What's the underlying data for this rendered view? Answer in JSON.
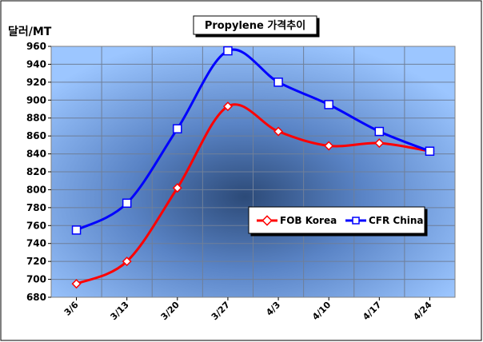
{
  "chart_data": {
    "type": "line",
    "title": "Propylene 가격추이",
    "ylabel": "달러/MT",
    "xlabel": "",
    "categories": [
      "3/6",
      "3/13",
      "3/20",
      "3/27",
      "4/3",
      "4/10",
      "4/17",
      "4/24"
    ],
    "ylim": [
      680,
      960
    ],
    "yticks": [
      680,
      700,
      720,
      740,
      760,
      780,
      800,
      820,
      840,
      860,
      880,
      900,
      920,
      940,
      960
    ],
    "grid": true,
    "legend_position": "center-right",
    "series": [
      {
        "name": "FOB Korea",
        "color": "#ff0000",
        "marker": "diamond",
        "values": [
          695,
          720,
          802,
          893,
          865,
          849,
          852,
          843
        ]
      },
      {
        "name": "CFR China",
        "color": "#0000ff",
        "marker": "square",
        "values": [
          755,
          785,
          868,
          955,
          920,
          895,
          865,
          843
        ]
      }
    ],
    "plot_background": "#7aaeff"
  }
}
